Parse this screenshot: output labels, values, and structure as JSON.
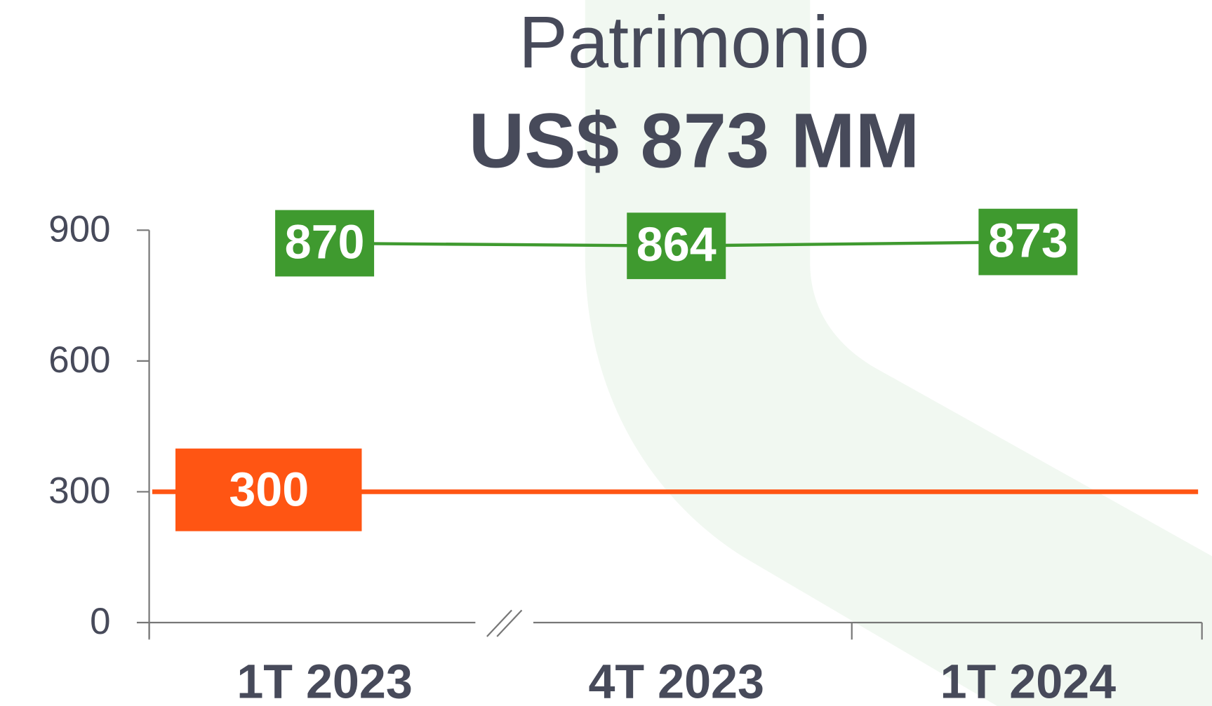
{
  "chart_data": {
    "type": "line",
    "title": "Patrimonio",
    "subtitle": "US$ 873 MM",
    "categories": [
      "1T 2023",
      "4T 2023",
      "1T 2024"
    ],
    "series": [
      {
        "color": "#3f9a2f",
        "values": [
          870,
          864,
          873
        ]
      }
    ],
    "reference_line": {
      "value": 300,
      "color": "#ff5513"
    },
    "ylim": [
      0,
      900
    ],
    "yticks": [
      0,
      300,
      600,
      900
    ],
    "axis_break": true
  }
}
